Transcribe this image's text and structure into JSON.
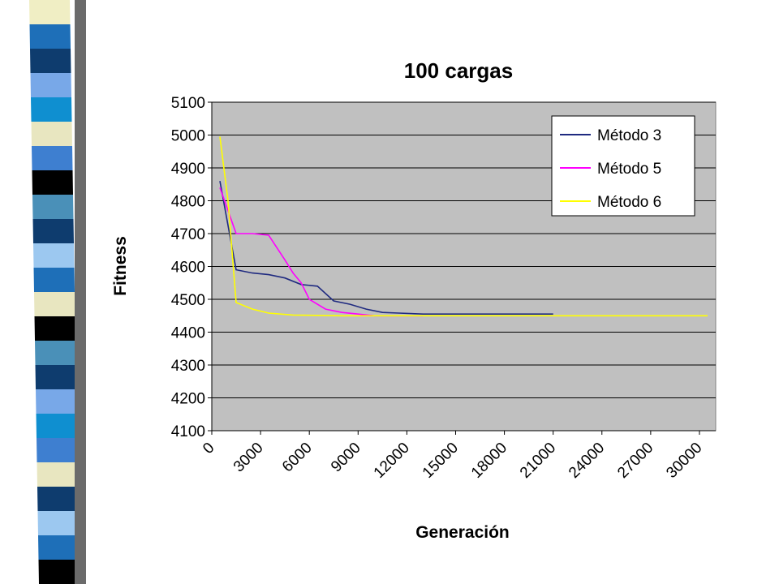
{
  "chart_data": {
    "type": "line",
    "title": "100 cargas",
    "xlabel": "Generación",
    "ylabel": "Fitness",
    "xlim": [
      0,
      31000
    ],
    "ylim": [
      4100,
      5100
    ],
    "y_ticks": [
      4100,
      4200,
      4300,
      4400,
      4500,
      4600,
      4700,
      4800,
      4900,
      5000,
      5100
    ],
    "x_ticks": [
      0,
      3000,
      6000,
      9000,
      12000,
      15000,
      18000,
      21000,
      24000,
      27000,
      30000
    ],
    "x_tick_labels": [
      "0",
      "3000",
      "6000",
      "9000",
      "12000",
      "15000",
      "18000",
      "21000",
      "24000",
      "27000",
      "30000"
    ],
    "grid": "horizontal",
    "legend": "top-right",
    "plot_background": "#C0C0C0",
    "series": [
      {
        "name": "Método 3",
        "color": "#1F2A80",
        "points": [
          [
            500,
            4860
          ],
          [
            1500,
            4590
          ],
          [
            2500,
            4580
          ],
          [
            3500,
            4575
          ],
          [
            4500,
            4565
          ],
          [
            5500,
            4545
          ],
          [
            6500,
            4540
          ],
          [
            7500,
            4495
          ],
          [
            8500,
            4485
          ],
          [
            9500,
            4470
          ],
          [
            10500,
            4460
          ],
          [
            11500,
            4458
          ],
          [
            13000,
            4455
          ],
          [
            15000,
            4455
          ],
          [
            18000,
            4455
          ],
          [
            21000,
            4455
          ]
        ]
      },
      {
        "name": "Método 5",
        "color": "#FF00FF",
        "points": [
          [
            500,
            4840
          ],
          [
            1000,
            4770
          ],
          [
            1500,
            4700
          ],
          [
            2500,
            4700
          ],
          [
            3500,
            4695
          ],
          [
            4500,
            4620
          ],
          [
            5000,
            4580
          ],
          [
            5500,
            4550
          ],
          [
            6000,
            4500
          ],
          [
            7000,
            4470
          ],
          [
            8000,
            4460
          ],
          [
            9000,
            4455
          ],
          [
            10000,
            4450
          ],
          [
            11500,
            4450
          ],
          [
            13000,
            4450
          ]
        ]
      },
      {
        "name": "Método 6",
        "color": "#FFFF00",
        "points": [
          [
            500,
            4995
          ],
          [
            1000,
            4800
          ],
          [
            1500,
            4490
          ],
          [
            2500,
            4470
          ],
          [
            3500,
            4458
          ],
          [
            5000,
            4452
          ],
          [
            8000,
            4450
          ],
          [
            15000,
            4450
          ],
          [
            25000,
            4450
          ],
          [
            30500,
            4450
          ]
        ]
      }
    ]
  },
  "decor": {
    "strip_colors": [
      "#F0EEC4",
      "#1E6FB8",
      "#0E3C6E",
      "#78A8E8",
      "#0F8FD0",
      "#E8E6C0",
      "#3E7FD0",
      "#000000",
      "#4A90B8",
      "#0E3C6E",
      "#9CC8F0",
      "#1E6FB8",
      "#E8E6C0",
      "#000000",
      "#4A90B8",
      "#0E3C6E",
      "#78A8E8",
      "#0F8FD0",
      "#3E7FD0",
      "#E8E6C0",
      "#0E3C6E",
      "#9CC8F0",
      "#1E6FB8",
      "#000000"
    ]
  }
}
